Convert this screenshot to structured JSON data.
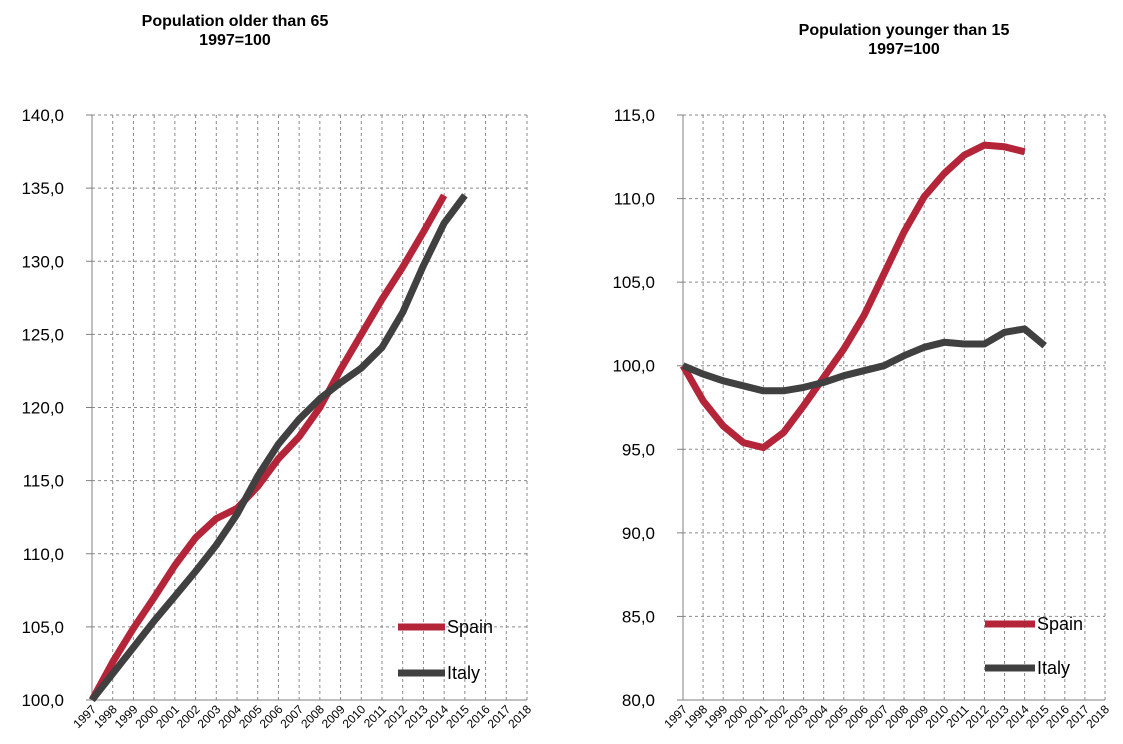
{
  "chart_data": [
    {
      "type": "line",
      "title": "Population older than 65",
      "subtitle": "1997=100",
      "xlabel": "",
      "ylabel": "",
      "x": [
        "1997",
        "1998",
        "1999",
        "2000",
        "2001",
        "2002",
        "2003",
        "2004",
        "2005",
        "2006",
        "2007",
        "2008",
        "2009",
        "2010",
        "2011",
        "2012",
        "2013",
        "2014",
        "2015",
        "2016",
        "2017",
        "2018"
      ],
      "ylim": [
        100,
        140
      ],
      "yticks": [
        "100,0",
        "105,0",
        "110,0",
        "115,0",
        "120,0",
        "125,0",
        "130,0",
        "135,0",
        "140,0"
      ],
      "grid": "dashed-both",
      "legend": "bottom-right",
      "series": [
        {
          "name": "Spain",
          "color": "#b5253a",
          "values": [
            100.0,
            102.6,
            104.9,
            107.0,
            109.2,
            111.1,
            112.4,
            113.1,
            114.6,
            116.5,
            118.0,
            120.0,
            122.6,
            125.0,
            127.4,
            129.6,
            132.0,
            134.5,
            null,
            null,
            null,
            null
          ]
        },
        {
          "name": "Italy",
          "color": "#404040",
          "values": [
            100.0,
            101.8,
            103.6,
            105.4,
            107.1,
            108.8,
            110.6,
            112.7,
            115.3,
            117.5,
            119.2,
            120.6,
            121.7,
            122.7,
            124.1,
            126.5,
            129.7,
            132.6,
            134.5,
            null,
            null,
            null
          ]
        }
      ]
    },
    {
      "type": "line",
      "title": "Population younger than 15",
      "subtitle": "1997=100",
      "xlabel": "",
      "ylabel": "",
      "x": [
        "1997",
        "1998",
        "1999",
        "2000",
        "2001",
        "2002",
        "2003",
        "2004",
        "2005",
        "2006",
        "2007",
        "2008",
        "2009",
        "2010",
        "2011",
        "2012",
        "2013",
        "2014",
        "2015",
        "2016",
        "2017",
        "2018"
      ],
      "ylim": [
        80,
        115
      ],
      "yticks": [
        "80,0",
        "85,0",
        "90,0",
        "95,0",
        "100,0",
        "105,0",
        "110,0",
        "115,0"
      ],
      "grid": "dashed-both",
      "legend": "bottom-right",
      "series": [
        {
          "name": "Spain",
          "color": "#b5253a",
          "values": [
            100.0,
            97.9,
            96.4,
            95.4,
            95.1,
            96.0,
            97.6,
            99.3,
            101.0,
            103.0,
            105.5,
            108.0,
            110.1,
            111.5,
            112.6,
            113.2,
            113.1,
            112.8,
            null,
            null,
            null,
            null
          ]
        },
        {
          "name": "Italy",
          "color": "#404040",
          "values": [
            100.0,
            99.5,
            99.1,
            98.8,
            98.5,
            98.5,
            98.7,
            99.0,
            99.4,
            99.7,
            100.0,
            100.6,
            101.1,
            101.4,
            101.3,
            101.3,
            102.0,
            102.2,
            101.2,
            null,
            null,
            null
          ]
        }
      ]
    }
  ]
}
